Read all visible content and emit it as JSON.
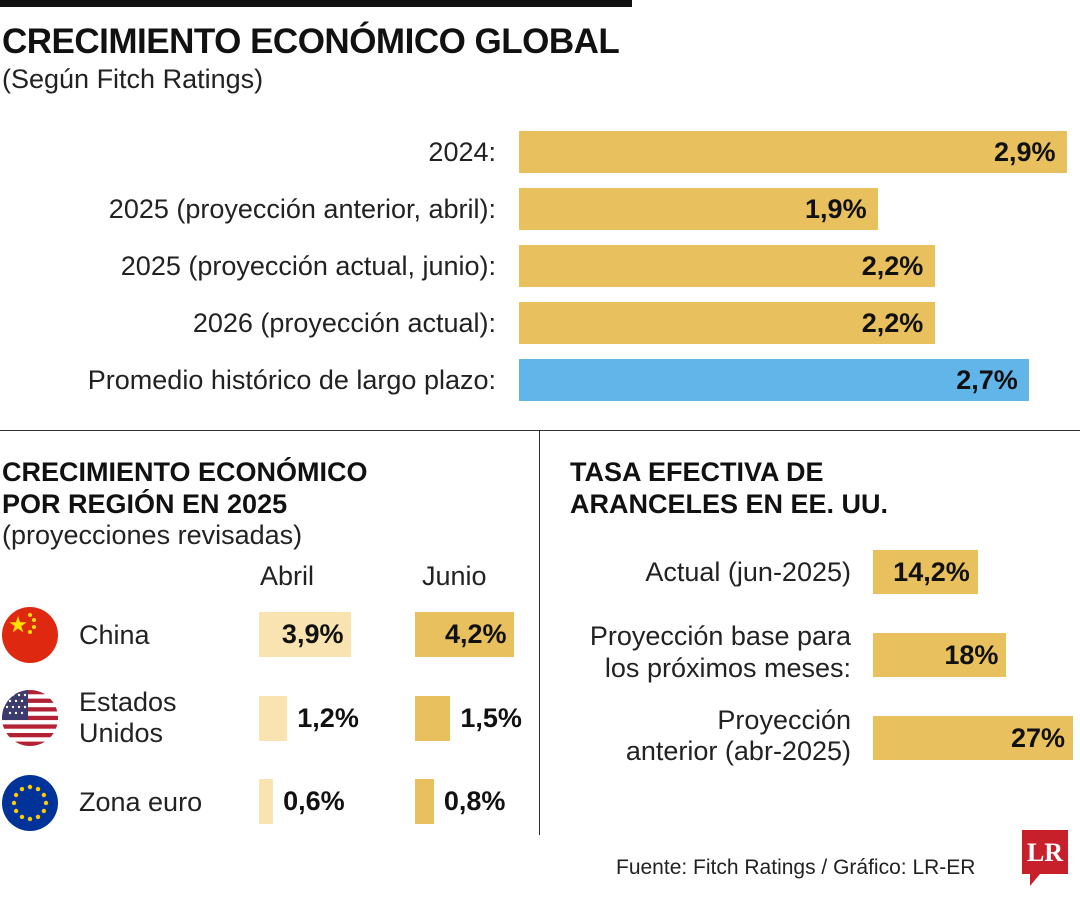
{
  "colors": {
    "gold": "#e8c05e",
    "light_gold": "#f9e3b0",
    "blue": "#62b5e8"
  },
  "header": {
    "title": "CRECIMIENTO ECONÓMICO GLOBAL",
    "subtitle": "(Según Fitch Ratings)"
  },
  "chart_data": [
    {
      "type": "bar",
      "orientation": "horizontal",
      "title": "CRECIMIENTO ECONÓMICO GLOBAL",
      "subtitle": "(Según Fitch Ratings)",
      "categories": [
        "2024:",
        "2025 (proyección anterior, abril):",
        "2025 (proyección actual, junio):",
        "2026 (proyección actual):",
        "Promedio histórico de largo plazo:"
      ],
      "values": [
        2.9,
        1.9,
        2.2,
        2.2,
        2.7
      ],
      "labels": [
        "2,9%",
        "1,9%",
        "2,2%",
        "2,2%",
        "2,7%"
      ],
      "colors": [
        "#e8c05e",
        "#e8c05e",
        "#e8c05e",
        "#e8c05e",
        "#62b5e8"
      ],
      "xlim": [
        0,
        2.9
      ]
    },
    {
      "type": "bar",
      "orientation": "horizontal",
      "title": "CRECIMIENTO ECONÓMICO POR REGIÓN EN 2025",
      "subtitle": "(proyecciones revisadas)",
      "categories": [
        "China",
        "Estados Unidos",
        "Zona euro"
      ],
      "series": [
        {
          "name": "Abril",
          "values": [
            3.9,
            1.2,
            0.6
          ],
          "labels": [
            "3,9%",
            "1,2%",
            "0,6%"
          ],
          "color": "#f9e3b0"
        },
        {
          "name": "Junio",
          "values": [
            4.2,
            1.5,
            0.8
          ],
          "labels": [
            "4,2%",
            "1,5%",
            "0,8%"
          ],
          "color": "#e8c05e"
        }
      ],
      "xlim": [
        0,
        4.2
      ]
    },
    {
      "type": "bar",
      "orientation": "horizontal",
      "title": "TASA EFECTIVA DE ARANCELES EN EE. UU.",
      "categories": [
        "Actual (jun-2025)",
        "Proyección base para los próximos meses:",
        "Proyección anterior (abr-2025)"
      ],
      "values": [
        14.2,
        18,
        27
      ],
      "labels": [
        "14,2%",
        "18%",
        "27%"
      ],
      "xlim": [
        0,
        27
      ]
    }
  ],
  "region": {
    "title_line1": "CRECIMIENTO ECONÓMICO",
    "title_line2": "POR REGIÓN EN 2025",
    "subtitle": "(proyecciones revisadas)",
    "col_abril": "Abril",
    "col_junio": "Junio",
    "rows": [
      {
        "name_line1": "China",
        "name_line2": ""
      },
      {
        "name_line1": "Estados",
        "name_line2": "Unidos"
      },
      {
        "name_line1": "Zona euro",
        "name_line2": ""
      }
    ]
  },
  "tariff": {
    "title_line1": "TASA EFECTIVA DE",
    "title_line2": "ARANCELES EN EE. UU.",
    "rows": [
      {
        "line1": "Actual (jun-2025)",
        "line2": ""
      },
      {
        "line1": "Proyección base para",
        "line2": "los próximos meses:"
      },
      {
        "line1": "Proyección",
        "line2": "anterior (abr-2025)"
      }
    ]
  },
  "footer": {
    "source": "Fuente: Fitch Ratings / Gráfico: LR-ER",
    "logo_text": "LR"
  }
}
